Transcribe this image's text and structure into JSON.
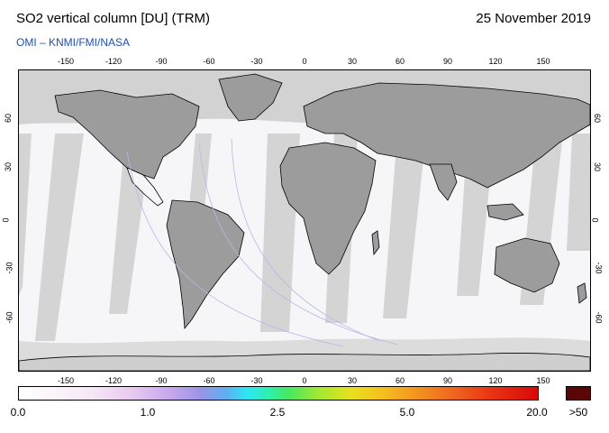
{
  "header": {
    "title": "SO2 vertical column [DU] (TRM)",
    "date": "25 November 2019",
    "subtitle": "OMI  –  KNMI/FMI/NASA"
  },
  "map": {
    "lon_ticks": [
      "-150",
      "-120",
      "-90",
      "-60",
      "-30",
      "0",
      "30",
      "60",
      "90",
      "120",
      "150"
    ],
    "lat_ticks": [
      "60",
      "30",
      "0",
      "-30",
      "-60"
    ],
    "colors": {
      "no_data": "#d2d2d2",
      "land_no_data": "#9a9a9a",
      "valid_data": "#f6f6f8",
      "coastline": "#000000",
      "orbit_track": "#b7b7e8"
    }
  },
  "colorbar": {
    "labels": [
      "0.0",
      "1.0",
      "2.5",
      "5.0",
      "20.0"
    ],
    "overflow_label": ">50",
    "overflow_color": "#5a0606"
  }
}
